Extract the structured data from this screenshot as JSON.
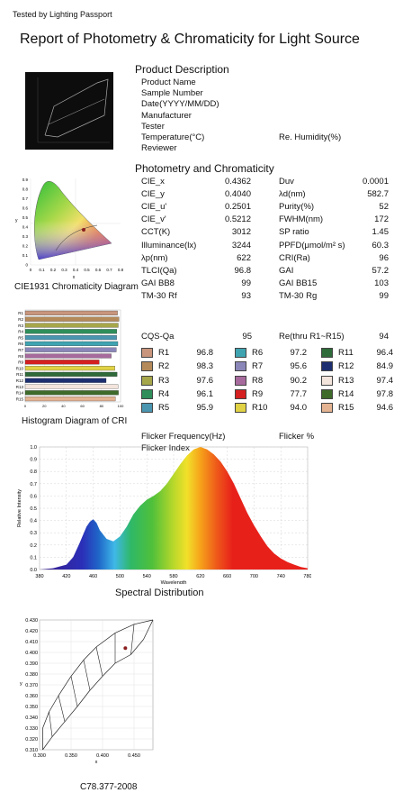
{
  "header": {
    "tested_by": "Tested by Lighting Passport",
    "title": "Report of Photometry & Chromaticity for Light Source"
  },
  "product": {
    "heading": "Product Description",
    "fields": [
      "Product Name",
      "Sample Number",
      "Date(YYYY/MM/DD)",
      "Manufacturer",
      "Tester",
      "Temperature(°C)",
      "Reviewer"
    ],
    "humidity_label": "Re. Humidity(%)"
  },
  "photometry": {
    "heading": "Photometry and Chromaticity",
    "left": [
      {
        "label": "CIE_x",
        "value": "0.4362"
      },
      {
        "label": "CIE_y",
        "value": "0.4040"
      },
      {
        "label": "CIE_u'",
        "value": "0.2501"
      },
      {
        "label": "CIE_v'",
        "value": "0.5212"
      },
      {
        "label": "CCT(K)",
        "value": "3012"
      },
      {
        "label": "Illuminance(lx)",
        "value": "3244"
      },
      {
        "label": "λp(nm)",
        "value": "622"
      },
      {
        "label": "TLCI(Qa)",
        "value": "96.8"
      },
      {
        "label": "GAI BB8",
        "value": "99"
      },
      {
        "label": "TM-30 Rf",
        "value": "93"
      }
    ],
    "right": [
      {
        "label": "Duv",
        "value": "0.0001"
      },
      {
        "label": "λd(nm)",
        "value": "582.7"
      },
      {
        "label": "Purity(%)",
        "value": "52"
      },
      {
        "label": "FWHM(nm)",
        "value": "172"
      },
      {
        "label": "SP ratio",
        "value": "1.45"
      },
      {
        "label": "PPFD(μmol/m² s)",
        "value": "60.3"
      },
      {
        "label": "CRI(Ra)",
        "value": "96"
      },
      {
        "label": "GAI",
        "value": "57.2"
      },
      {
        "label": "GAI BB15",
        "value": "103"
      },
      {
        "label": "TM-30 Rg",
        "value": "99"
      }
    ]
  },
  "cqs": {
    "label": "CQS-Qa",
    "value": "95",
    "re_label": "Re(thru R1~R15)",
    "re_value": "94"
  },
  "cri": [
    {
      "label": "R1",
      "value": "96.8",
      "color": "#c8957c"
    },
    {
      "label": "R2",
      "value": "98.3",
      "color": "#b58a5a"
    },
    {
      "label": "R3",
      "value": "97.6",
      "color": "#a6a64b"
    },
    {
      "label": "R4",
      "value": "96.1",
      "color": "#2f8e5a"
    },
    {
      "label": "R5",
      "value": "95.9",
      "color": "#4a96b0"
    },
    {
      "label": "R6",
      "value": "97.2",
      "color": "#3fa3b0"
    },
    {
      "label": "R7",
      "value": "95.6",
      "color": "#8a86b8"
    },
    {
      "label": "R8",
      "value": "90.2",
      "color": "#a66a9c"
    },
    {
      "label": "R9",
      "value": "77.7",
      "color": "#d42020"
    },
    {
      "label": "R10",
      "value": "94.0",
      "color": "#e0d244"
    },
    {
      "label": "R11",
      "value": "96.4",
      "color": "#2f6a3a"
    },
    {
      "label": "R12",
      "value": "84.9",
      "color": "#1d2f70"
    },
    {
      "label": "R13",
      "value": "97.4",
      "color": "#f3e4dc"
    },
    {
      "label": "R14",
      "value": "97.8",
      "color": "#3e6a2a"
    },
    {
      "label": "R15",
      "value": "94.6",
      "color": "#e4b492"
    }
  ],
  "flicker": {
    "freq_label": "Flicker Frequency(Hz)",
    "pct_label": "Flicker %",
    "index_label": "Flicker Index"
  },
  "captions": {
    "cie": "CIE1931 Chromaticity Diagram",
    "cri": "Histogram Diagram of CRI",
    "spectral": "Spectral Distribution",
    "c78": "C78.377-2008"
  },
  "chart_data": [
    {
      "type": "area",
      "name": "spectral",
      "xlabel": "Wavelength",
      "ylabel": "Relative Intensity",
      "xlim": [
        380,
        780
      ],
      "ylim": [
        0,
        1.0
      ],
      "xticks": [
        380,
        420,
        460,
        500,
        540,
        580,
        620,
        660,
        700,
        740,
        780
      ],
      "yticks": [
        0.0,
        0.1,
        0.2,
        0.3,
        0.4,
        0.5,
        0.6,
        0.7,
        0.8,
        0.9,
        1.0
      ],
      "x": [
        380,
        400,
        420,
        430,
        440,
        450,
        455,
        460,
        465,
        470,
        480,
        490,
        500,
        510,
        520,
        530,
        540,
        550,
        560,
        570,
        580,
        590,
        600,
        610,
        620,
        630,
        640,
        650,
        660,
        670,
        680,
        690,
        700,
        710,
        720,
        730,
        740,
        750,
        760,
        770,
        780
      ],
      "y": [
        0.0,
        0.01,
        0.04,
        0.1,
        0.22,
        0.35,
        0.39,
        0.41,
        0.38,
        0.32,
        0.25,
        0.23,
        0.27,
        0.35,
        0.45,
        0.52,
        0.57,
        0.6,
        0.64,
        0.7,
        0.78,
        0.86,
        0.93,
        0.98,
        1.0,
        0.98,
        0.94,
        0.88,
        0.8,
        0.7,
        0.58,
        0.46,
        0.36,
        0.27,
        0.19,
        0.13,
        0.09,
        0.06,
        0.04,
        0.02,
        0.01
      ]
    },
    {
      "type": "bar",
      "name": "cri_histogram",
      "categories": [
        "R1",
        "R2",
        "R3",
        "R4",
        "R5",
        "R6",
        "R7",
        "R8",
        "R9",
        "R10",
        "R11",
        "R12",
        "R13",
        "R14",
        "R15"
      ],
      "values": [
        96.8,
        98.3,
        97.6,
        96.1,
        95.9,
        97.2,
        95.6,
        90.2,
        77.7,
        94.0,
        96.4,
        84.9,
        97.4,
        97.8,
        94.6
      ],
      "xticks": [
        0,
        20,
        40,
        60,
        80,
        100
      ],
      "xlim": [
        0,
        100
      ]
    },
    {
      "type": "scatter",
      "name": "c78_377",
      "xlabel": "x",
      "ylabel": "y",
      "xlim": [
        0.3,
        0.48
      ],
      "ylim": [
        0.31,
        0.43
      ],
      "xticks": [
        0.3,
        0.35,
        0.4,
        0.45
      ],
      "xticklabels": [
        "0.300",
        "0.350",
        "0.400",
        "0.450"
      ],
      "yticks": [
        0.31,
        0.32,
        0.33,
        0.34,
        0.35,
        0.36,
        0.37,
        0.38,
        0.39,
        0.4,
        0.41,
        0.42,
        0.43
      ],
      "yticklabels": [
        "0.310",
        "0.320",
        "0.330",
        "0.340",
        "0.350",
        "0.360",
        "0.370",
        "0.380",
        "0.390",
        "0.400",
        "0.410",
        "0.420",
        "0.430"
      ],
      "point": {
        "x": 0.4362,
        "y": 0.404
      }
    },
    {
      "type": "scatter",
      "name": "cie1931",
      "xlabel": "x",
      "ylabel": "y",
      "xticks": [
        0,
        0.1,
        0.2,
        0.3,
        0.4,
        0.5,
        0.6,
        0.7,
        0.8
      ],
      "yticks": [
        0,
        0.1,
        0.2,
        0.3,
        0.4,
        0.5,
        0.6,
        0.7,
        0.8,
        0.9
      ],
      "point": {
        "x": 0.4362,
        "y": 0.404
      }
    }
  ]
}
